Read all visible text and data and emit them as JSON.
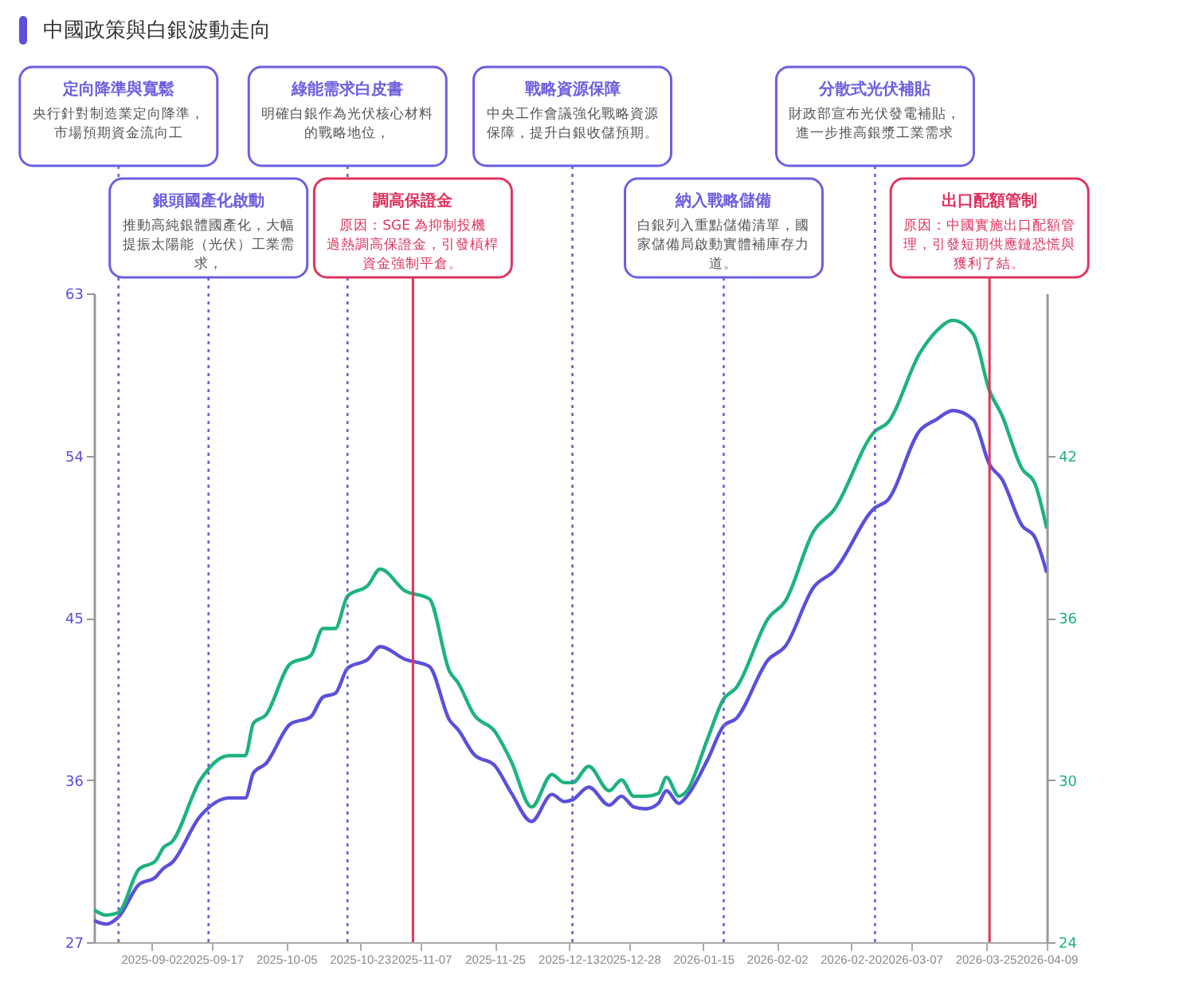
{
  "chart_data": {
    "type": "line",
    "title": "中國政策與白銀波動走向",
    "x": [
      "2025-08-19",
      "2025-08-22",
      "2025-08-25",
      "2025-08-30",
      "2025-09-03",
      "2025-09-05",
      "2025-09-07",
      "2025-09-14",
      "2025-09-21",
      "2025-09-25",
      "2025-09-27",
      "2025-09-30",
      "2025-10-06",
      "2025-10-11",
      "2025-10-14",
      "2025-10-17",
      "2025-10-20",
      "2025-10-25",
      "2025-10-28",
      "2025-11-03",
      "2025-11-09",
      "2025-11-14",
      "2025-11-16",
      "2025-11-20",
      "2025-11-25",
      "2025-11-29",
      "2025-12-04",
      "2025-12-09",
      "2025-12-12",
      "2025-12-14",
      "2025-12-18",
      "2025-12-23",
      "2025-12-26",
      "2025-12-29",
      "2026-01-01",
      "2026-01-04",
      "2026-01-06",
      "2026-01-09",
      "2026-01-11",
      "2026-01-16",
      "2026-01-20",
      "2026-01-23",
      "2026-01-31",
      "2026-02-04",
      "2026-02-11",
      "2026-02-16",
      "2026-02-26",
      "2026-03-01",
      "2026-03-09",
      "2026-03-13",
      "2026-03-17",
      "2026-03-22",
      "2026-03-26",
      "2026-03-29",
      "2026-04-03",
      "2026-04-06",
      "2026-04-09"
    ],
    "series": [
      {
        "color": "#5b4fdc",
        "values": [
          28.2,
          28.0,
          28.4,
          30.2,
          30.6,
          31.1,
          31.4,
          34.0,
          35.0,
          35.0,
          36.4,
          36.9,
          39.1,
          39.5,
          40.6,
          40.8,
          42.2,
          42.7,
          43.4,
          42.7,
          42.3,
          39.3,
          38.8,
          37.4,
          36.8,
          35.3,
          33.7,
          35.2,
          34.8,
          34.9,
          35.6,
          34.6,
          35.1,
          34.5,
          34.4,
          34.7,
          35.4,
          34.7,
          35.1,
          37.1,
          39.0,
          39.4,
          42.7,
          43.4,
          46.7,
          47.6,
          51.1,
          51.5,
          55.4,
          56.0,
          56.5,
          56.0,
          53.5,
          52.7,
          50.1,
          49.5,
          47.5
        ]
      },
      {
        "color": "#1db37e",
        "axis": "y2",
        "values": [
          25.2,
          25.0,
          25.1,
          26.7,
          27.0,
          27.5,
          27.7,
          30.0,
          30.9,
          30.9,
          32.1,
          32.4,
          34.3,
          34.6,
          35.6,
          35.6,
          36.8,
          37.2,
          37.8,
          37.0,
          36.7,
          34.0,
          33.6,
          32.4,
          31.8,
          30.7,
          29.0,
          30.2,
          29.9,
          29.9,
          30.5,
          29.6,
          30.0,
          29.4,
          29.4,
          29.5,
          30.1,
          29.4,
          29.6,
          31.5,
          33.0,
          33.4,
          36.0,
          36.6,
          39.2,
          40.0,
          42.9,
          43.2,
          45.8,
          46.6,
          47.0,
          46.5,
          44.4,
          43.5,
          41.5,
          41.0,
          39.3
        ]
      }
    ],
    "xlim": [
      "2025-08-19",
      "2026-04-09"
    ],
    "xticks": [
      "2025-09-02",
      "2025-09-17",
      "2025-10-05",
      "2025-10-23",
      "2025-11-07",
      "2025-11-25",
      "2025-12-13",
      "2025-12-28",
      "2026-01-15",
      "2026-02-02",
      "2026-02-20",
      "2026-03-07",
      "2026-03-25",
      "2026-04-09"
    ],
    "ylim": [
      27,
      63
    ],
    "yticks": [
      27,
      36,
      45,
      54,
      63
    ],
    "y2lim": [
      24,
      48
    ],
    "y2ticks": [
      24,
      30,
      36,
      42
    ],
    "ref_lines": [
      {
        "axis": "x",
        "value": "2025-08-25",
        "label": "定向降準與寬鬆",
        "color": "#6b5fe0",
        "line_style": "dotted"
      },
      {
        "axis": "x",
        "value": "2025-09-16",
        "label": "銀頭國產化啟動",
        "color": "#6b5fe0",
        "line_style": "dotted"
      },
      {
        "axis": "x",
        "value": "2025-10-20",
        "label": "綠能需求白皮書",
        "color": "#6b5fe0",
        "line_style": "dotted"
      },
      {
        "axis": "x",
        "value": "2025-11-05",
        "label": "調高保證金",
        "color": "#e0335e",
        "line_style": "solid"
      },
      {
        "axis": "x",
        "value": "2025-12-14",
        "label": "戰略資源保障",
        "color": "#6b5fe0",
        "line_style": "dotted"
      },
      {
        "axis": "x",
        "value": "2026-01-20",
        "label": "納入戰略儲備",
        "color": "#6b5fe0",
        "line_style": "dotted"
      },
      {
        "axis": "x",
        "value": "2026-02-26",
        "label": "分散式光伏補貼",
        "color": "#6b5fe0",
        "line_style": "dotted"
      },
      {
        "axis": "x",
        "value": "2026-03-26",
        "label": "出口配額管制",
        "color": "#e0335e",
        "line_style": "solid"
      }
    ],
    "annotations": [
      "央行針對制造業定向降準，市場預期資金流向工",
      "推動高純銀體國產化，大幅提振太陽能（光伏）工業需求，",
      "明確白銀作為光伏核心材料的戰略地位，",
      "原因：SGE 為抑制投機過熱調高保證金，引發槓桿資金強制平倉。",
      "中央工作會議強化戰略資源保障，提升白銀收儲預期。",
      "白銀列入重點儲備清單，國家儲備局啟動實體補庫存力道。",
      "財政部宣布光伏發電補貼，進一步推高銀漿工業需求",
      "原因：中國實施出口配額管理，引發短期供應鏈恐慌與獲利了結。"
    ]
  }
}
